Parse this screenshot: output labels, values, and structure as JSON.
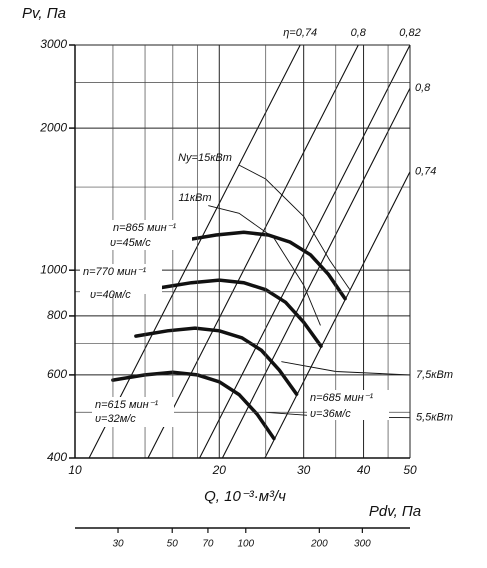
{
  "chart_data": {
    "type": "line",
    "y_label": "Pv, Па",
    "x_label": "Q, 10⁻³·м³/ч",
    "x2_label": "Pdv, Па",
    "log_x": true,
    "log_y": true,
    "grid": true,
    "color": "#111111",
    "xlim": [
      10,
      50
    ],
    "xticks": [
      10,
      20,
      30,
      40,
      50
    ],
    "xminor": [
      12,
      14,
      16,
      18,
      25,
      35,
      45
    ],
    "ylim": [
      400,
      3000
    ],
    "yticks": [
      400,
      600,
      800,
      1000,
      2000,
      3000
    ],
    "yminor": [
      500,
      700,
      900,
      1500,
      2500
    ],
    "x2lim": [
      20,
      470
    ],
    "x2ticks": [
      30,
      50,
      70,
      100,
      200,
      300
    ],
    "series": [
      {
        "name": "n=615 мин⁻¹",
        "speed": "υ=32м/с",
        "x": [
          12,
          14,
          16,
          18,
          20,
          22,
          24,
          26
        ],
        "values": [
          585,
          600,
          608,
          600,
          580,
          545,
          495,
          440
        ]
      },
      {
        "name": "n=685 мин⁻¹",
        "speed": "υ=36м/с",
        "x": [
          13.4,
          15.6,
          17.8,
          20,
          22.3,
          24.5,
          26.7,
          29
        ],
        "values": [
          725,
          744,
          754,
          744,
          719,
          676,
          614,
          546
        ]
      },
      {
        "name": "n=770 мин⁻¹",
        "speed": "υ=40м/с",
        "x": [
          15,
          17.5,
          20,
          22.5,
          25,
          27.5,
          30,
          32.6
        ],
        "values": [
          917,
          941,
          953,
          941,
          909,
          855,
          776,
          690
        ]
      },
      {
        "name": "n=865 мин⁻¹",
        "speed": "υ=45м/с",
        "x": [
          16.9,
          19.7,
          22.5,
          25.3,
          28.1,
          31,
          33.8,
          36.6
        ],
        "values": [
          1157,
          1187,
          1203,
          1187,
          1147,
          1078,
          979,
          870
        ]
      }
    ],
    "efficiency_lines": [
      {
        "label": "η=0,74",
        "x": [
          10.7,
          29.5
        ],
        "values": [
          400,
          3000
        ]
      },
      {
        "label": "0,8",
        "x": [
          14.2,
          39
        ],
        "values": [
          400,
          3000
        ]
      },
      {
        "label": "0,82",
        "x": [
          18.2,
          50
        ],
        "values": [
          400,
          3000
        ]
      },
      {
        "label": "0,8",
        "x": [
          20.3,
          50
        ],
        "values": [
          400,
          2430
        ]
      },
      {
        "label": "0,74",
        "x": [
          24.9,
          50
        ],
        "values": [
          400,
          1616
        ]
      }
    ],
    "power_lines": [
      {
        "label": "Ny=15кВт",
        "x": [
          22,
          25,
          30,
          34,
          37.5
        ],
        "values": [
          1670,
          1560,
          1300,
          1050,
          908
        ]
      },
      {
        "label": "11кВт",
        "x": [
          19,
          22,
          26,
          30,
          32.5
        ],
        "values": [
          1370,
          1320,
          1170,
          930,
          765
        ]
      },
      {
        "label": "7,5кВт",
        "x": [
          27,
          35,
          50
        ],
        "values": [
          640,
          610,
          600
        ]
      },
      {
        "label": "5,5кВт",
        "x": [
          25,
          33,
          50
        ],
        "values": [
          500,
          490,
          487
        ]
      }
    ]
  }
}
